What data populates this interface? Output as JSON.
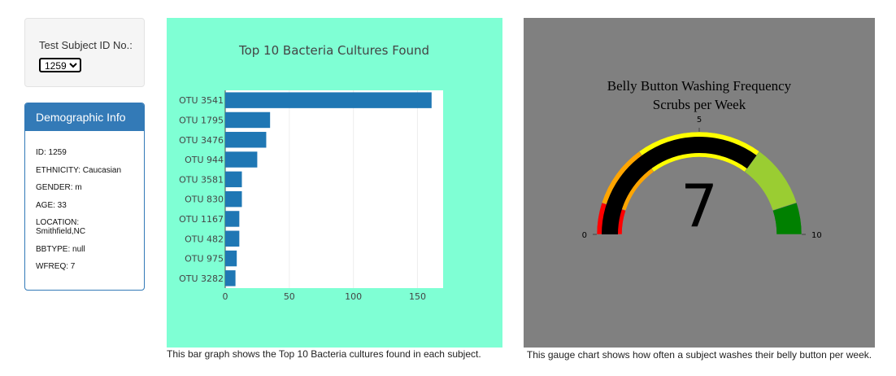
{
  "selector": {
    "label": "Test Subject ID No.:",
    "selected": "1259"
  },
  "demographic": {
    "title": "Demographic Info",
    "rows": [
      "ID: 1259",
      "ETHNICITY: Caucasian",
      "GENDER: m",
      "AGE: 33",
      "LOCATION: Smithfield,NC",
      "BBTYPE: null",
      "WFREQ: 7"
    ]
  },
  "bar_chart": {
    "caption": "This bar graph shows the Top 10 Bacteria cultures found in each subject."
  },
  "gauge_chart": {
    "caption": "This gauge chart shows how often a subject washes their belly button per week."
  },
  "colors": {
    "bar": "#1f77b4",
    "bar_bg": "#7fffd4",
    "gauge_bg": "#808080",
    "panel": "#337ab7"
  },
  "chart_data": [
    {
      "type": "bar",
      "orientation": "horizontal",
      "title": "Top 10 Bacteria Cultures Found",
      "categories": [
        "OTU 3541",
        "OTU 1795",
        "OTU 3476",
        "OTU 944",
        "OTU 3581",
        "OTU 830",
        "OTU 1167",
        "OTU 482",
        "OTU 975",
        "OTU 3282"
      ],
      "values": [
        161,
        35,
        32,
        25,
        13,
        13,
        11,
        11,
        9,
        8
      ],
      "xlim": [
        0,
        170
      ],
      "xticks": [
        0,
        50,
        100,
        150
      ],
      "grid": true,
      "color": "#1f77b4"
    },
    {
      "type": "gauge",
      "title": "Belly Button Washing Frequency",
      "subtitle": "Scrubs per Week",
      "value": 7,
      "value_label": "7",
      "range": [
        0,
        10
      ],
      "tick_labels": [
        "0",
        "5",
        "10"
      ],
      "steps": [
        {
          "range": [
            0,
            1
          ],
          "color": "#ff0000"
        },
        {
          "range": [
            1,
            3
          ],
          "color": "#ffa500"
        },
        {
          "range": [
            3,
            7
          ],
          "color": "#ffff00"
        },
        {
          "range": [
            7,
            9
          ],
          "color": "#9acd32"
        },
        {
          "range": [
            9,
            10
          ],
          "color": "#008000"
        }
      ],
      "bar_color": "#000000"
    }
  ]
}
